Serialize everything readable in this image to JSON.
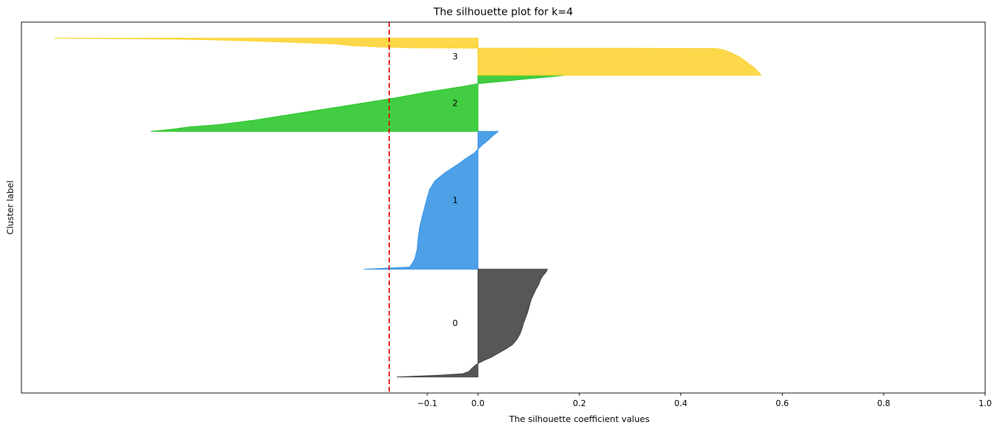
{
  "chart_data": {
    "type": "area",
    "title": "The silhouette plot for k=4",
    "xlabel": "The silhouette coefficient values",
    "ylabel": "Cluster label",
    "xlim": [
      -0.9,
      1.0
    ],
    "ylim": [
      0,
      740
    ],
    "xticks": [
      -0.1,
      0.0,
      0.2,
      0.4,
      0.6,
      0.8,
      1.0
    ],
    "xtick_labels": [
      "−0.1",
      "0.0",
      "0.2",
      "0.4",
      "0.6",
      "0.8",
      "1.0"
    ],
    "yticks": [],
    "grid": false,
    "average_silhouette": -0.175,
    "average_line_color": "#e00000",
    "clusters": [
      {
        "label": "0",
        "color": "#3a3a3a",
        "y_lower": 32,
        "y_upper": 247,
        "profile": [
          [
            0.0,
            0.137
          ],
          [
            0.03,
            0.134
          ],
          [
            0.06,
            0.128
          ],
          [
            0.1,
            0.123
          ],
          [
            0.14,
            0.12
          ],
          [
            0.18,
            0.115
          ],
          [
            0.23,
            0.11
          ],
          [
            0.28,
            0.105
          ],
          [
            0.33,
            0.102
          ],
          [
            0.4,
            0.098
          ],
          [
            0.45,
            0.094
          ],
          [
            0.5,
            0.09
          ],
          [
            0.55,
            0.087
          ],
          [
            0.6,
            0.083
          ],
          [
            0.65,
            0.077
          ],
          [
            0.7,
            0.068
          ],
          [
            0.74,
            0.055
          ],
          [
            0.78,
            0.04
          ],
          [
            0.82,
            0.025
          ],
          [
            0.85,
            0.01
          ],
          [
            0.87,
            0.002
          ],
          [
            0.89,
            -0.005
          ],
          [
            0.92,
            -0.012
          ],
          [
            0.95,
            -0.018
          ],
          [
            0.97,
            -0.03
          ],
          [
            0.985,
            -0.08
          ],
          [
            1.0,
            -0.16
          ]
        ]
      },
      {
        "label": "1",
        "color": "#2f8fe3",
        "y_lower": 247,
        "y_upper": 522,
        "profile": [
          [
            0.0,
            0.04
          ],
          [
            0.03,
            0.03
          ],
          [
            0.07,
            0.018
          ],
          [
            0.1,
            0.008
          ],
          [
            0.13,
            0.0
          ],
          [
            0.16,
            -0.008
          ],
          [
            0.2,
            -0.025
          ],
          [
            0.24,
            -0.04
          ],
          [
            0.3,
            -0.065
          ],
          [
            0.36,
            -0.085
          ],
          [
            0.42,
            -0.095
          ],
          [
            0.48,
            -0.1
          ],
          [
            0.55,
            -0.105
          ],
          [
            0.62,
            -0.11
          ],
          [
            0.7,
            -0.115
          ],
          [
            0.78,
            -0.118
          ],
          [
            0.86,
            -0.12
          ],
          [
            0.93,
            -0.125
          ],
          [
            0.96,
            -0.13
          ],
          [
            0.985,
            -0.135
          ],
          [
            1.0,
            -0.225
          ]
        ]
      },
      {
        "label": "2",
        "color": "#22c422",
        "y_lower": 522,
        "y_upper": 634,
        "profile": [
          [
            0.0,
            0.172
          ],
          [
            0.03,
            0.14
          ],
          [
            0.07,
            0.09
          ],
          [
            0.1,
            0.06
          ],
          [
            0.15,
            0.0
          ],
          [
            0.2,
            -0.03
          ],
          [
            0.3,
            -0.1
          ],
          [
            0.4,
            -0.16
          ],
          [
            0.5,
            -0.23
          ],
          [
            0.6,
            -0.3
          ],
          [
            0.7,
            -0.37
          ],
          [
            0.8,
            -0.44
          ],
          [
            0.88,
            -0.51
          ],
          [
            0.92,
            -0.57
          ],
          [
            0.96,
            -0.6
          ],
          [
            1.0,
            -0.645
          ]
        ]
      },
      {
        "label": "3",
        "color": "#fcd12a",
        "y_lower": 634,
        "y_upper": 708,
        "profile": [
          [
            0.0,
            -0.835
          ],
          [
            0.02,
            -0.64
          ],
          [
            0.04,
            -0.54
          ],
          [
            0.07,
            -0.46
          ],
          [
            0.1,
            -0.39
          ],
          [
            0.13,
            -0.33
          ],
          [
            0.16,
            -0.28
          ],
          [
            0.2,
            -0.25
          ],
          [
            0.24,
            -0.19
          ],
          [
            0.26,
            -0.12
          ],
          [
            0.27,
            0.0
          ],
          [
            0.28,
            0.47
          ],
          [
            0.32,
            0.485
          ],
          [
            0.4,
            0.5
          ],
          [
            0.5,
            0.515
          ],
          [
            0.6,
            0.525
          ],
          [
            0.7,
            0.535
          ],
          [
            0.8,
            0.545
          ],
          [
            0.9,
            0.552
          ],
          [
            0.96,
            0.556
          ],
          [
            1.0,
            0.558
          ]
        ]
      }
    ]
  }
}
